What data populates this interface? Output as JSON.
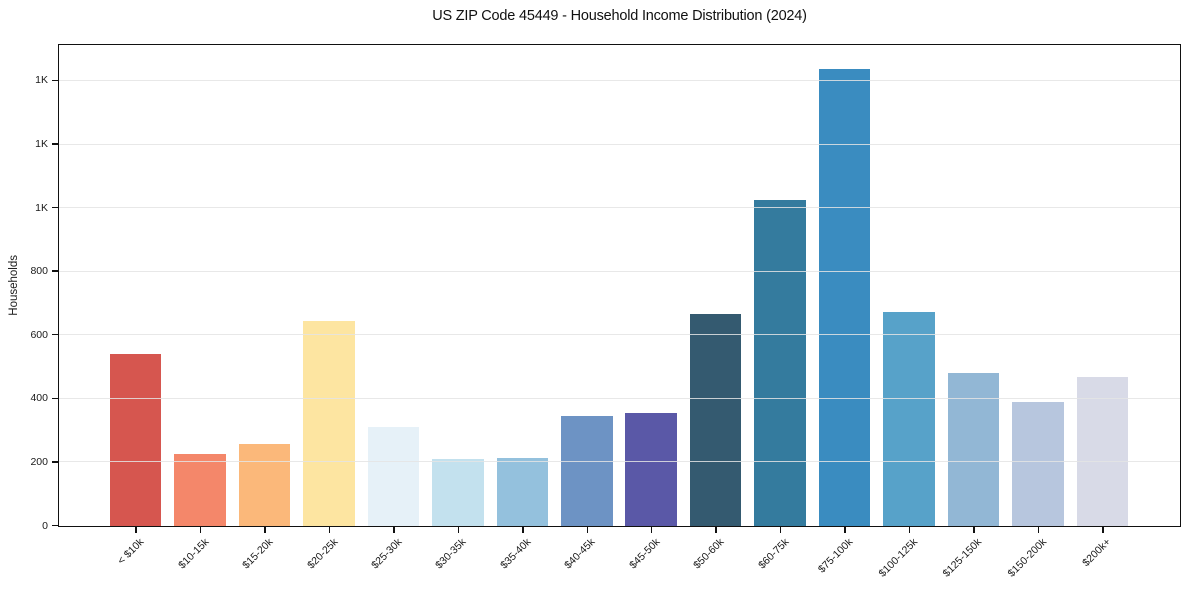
{
  "chart_data": {
    "type": "bar",
    "title": "US ZIP Code 45449 - Household Income Distribution (2024)",
    "xlabel": "",
    "ylabel": "Households",
    "categories": [
      "< $10k",
      "$10-15k",
      "$15-20k",
      "$20-25k",
      "$25-30k",
      "$30-35k",
      "$35-40k",
      "$40-45k",
      "$45-50k",
      "$50-60k",
      "$60-75k",
      "$75-100k",
      "$100-125k",
      "$125-150k",
      "$150-200k",
      "$200k+"
    ],
    "values": [
      540,
      228,
      258,
      645,
      312,
      210,
      214,
      345,
      356,
      666,
      1026,
      1438,
      674,
      480,
      390,
      470
    ],
    "bar_colors": [
      "#d6564f",
      "#f4876a",
      "#fbb87a",
      "#fde5a1",
      "#e6f1f8",
      "#c3e1ee",
      "#94c1dd",
      "#6d93c4",
      "#5a58a7",
      "#345a70",
      "#347b9e",
      "#3a8cc0",
      "#57a2c9",
      "#92b7d5",
      "#b7c6de",
      "#d8dae7"
    ],
    "ylim": [
      0,
      1510
    ],
    "ytick_values": [
      0,
      200,
      400,
      600,
      800,
      1000,
      1200,
      1400
    ],
    "ytick_labels": [
      "0",
      "200",
      "400",
      "600",
      "800",
      "1K",
      "1K",
      "1K"
    ],
    "grid": "horizontal-y",
    "legend": "none"
  }
}
